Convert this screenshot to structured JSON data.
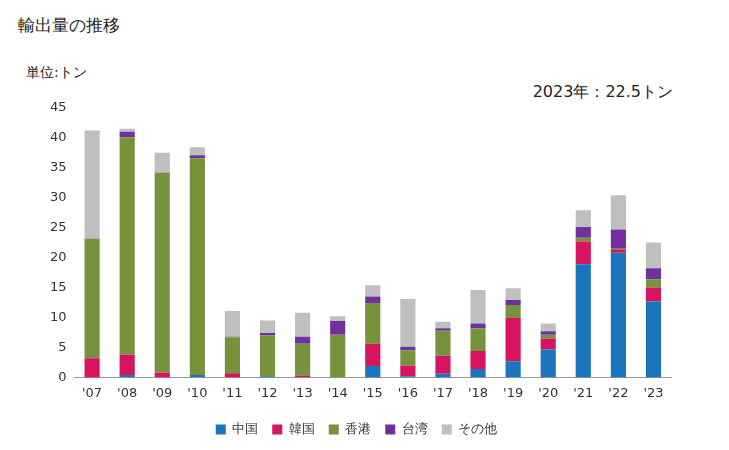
{
  "chart_data": {
    "type": "bar",
    "title": "輸出量の推移",
    "y_label": "単位:トン",
    "annotations": [
      "2023年：22.5トン"
    ],
    "categories": [
      "'07",
      "'08",
      "'09",
      "'10",
      "'11",
      "'12",
      "'13",
      "'14",
      "'15",
      "'16",
      "'17",
      "'18",
      "'19",
      "'20",
      "'21",
      "'22",
      "'23"
    ],
    "series": [
      {
        "name": "中国",
        "color": "#1a75bc",
        "values": [
          0,
          0.4,
          0,
          0.4,
          0,
          0.2,
          0,
          0,
          1.9,
          0.2,
          0.6,
          1.4,
          2.7,
          4.7,
          18.9,
          20.8,
          12.7
        ]
      },
      {
        "name": "韓国",
        "color": "#d6145f",
        "values": [
          3.2,
          3.4,
          0.8,
          0,
          0.7,
          0,
          0.3,
          0,
          3.7,
          1.8,
          3.0,
          3.0,
          7.2,
          1.8,
          3.8,
          0.6,
          2.3
        ]
      },
      {
        "name": "香港",
        "color": "#76933c",
        "values": [
          20,
          36.3,
          33.4,
          36.2,
          6.0,
          6.8,
          5.3,
          7.1,
          6.8,
          2.5,
          4.2,
          3.8,
          2.2,
          0.6,
          0.6,
          0.2,
          1.4
        ]
      },
      {
        "name": "台湾",
        "color": "#7030a0",
        "values": [
          0,
          0.9,
          0,
          0.5,
          0.1,
          0.4,
          1.2,
          2.3,
          1.1,
          0.6,
          0.4,
          0.8,
          0.8,
          0.6,
          1.8,
          3.1,
          1.8
        ]
      },
      {
        "name": "その他",
        "color": "#bfbfbf",
        "values": [
          18,
          0.5,
          3.3,
          1.3,
          4.3,
          2.1,
          4.0,
          0.8,
          1.9,
          8.0,
          1.1,
          5.6,
          2.0,
          1.3,
          2.8,
          5.7,
          4.3
        ]
      }
    ],
    "ylim": [
      0,
      45
    ],
    "yticks": [
      0,
      5,
      10,
      15,
      20,
      25,
      30,
      35,
      40,
      45
    ],
    "stacked": true,
    "grid": false,
    "legend": "bottom"
  }
}
